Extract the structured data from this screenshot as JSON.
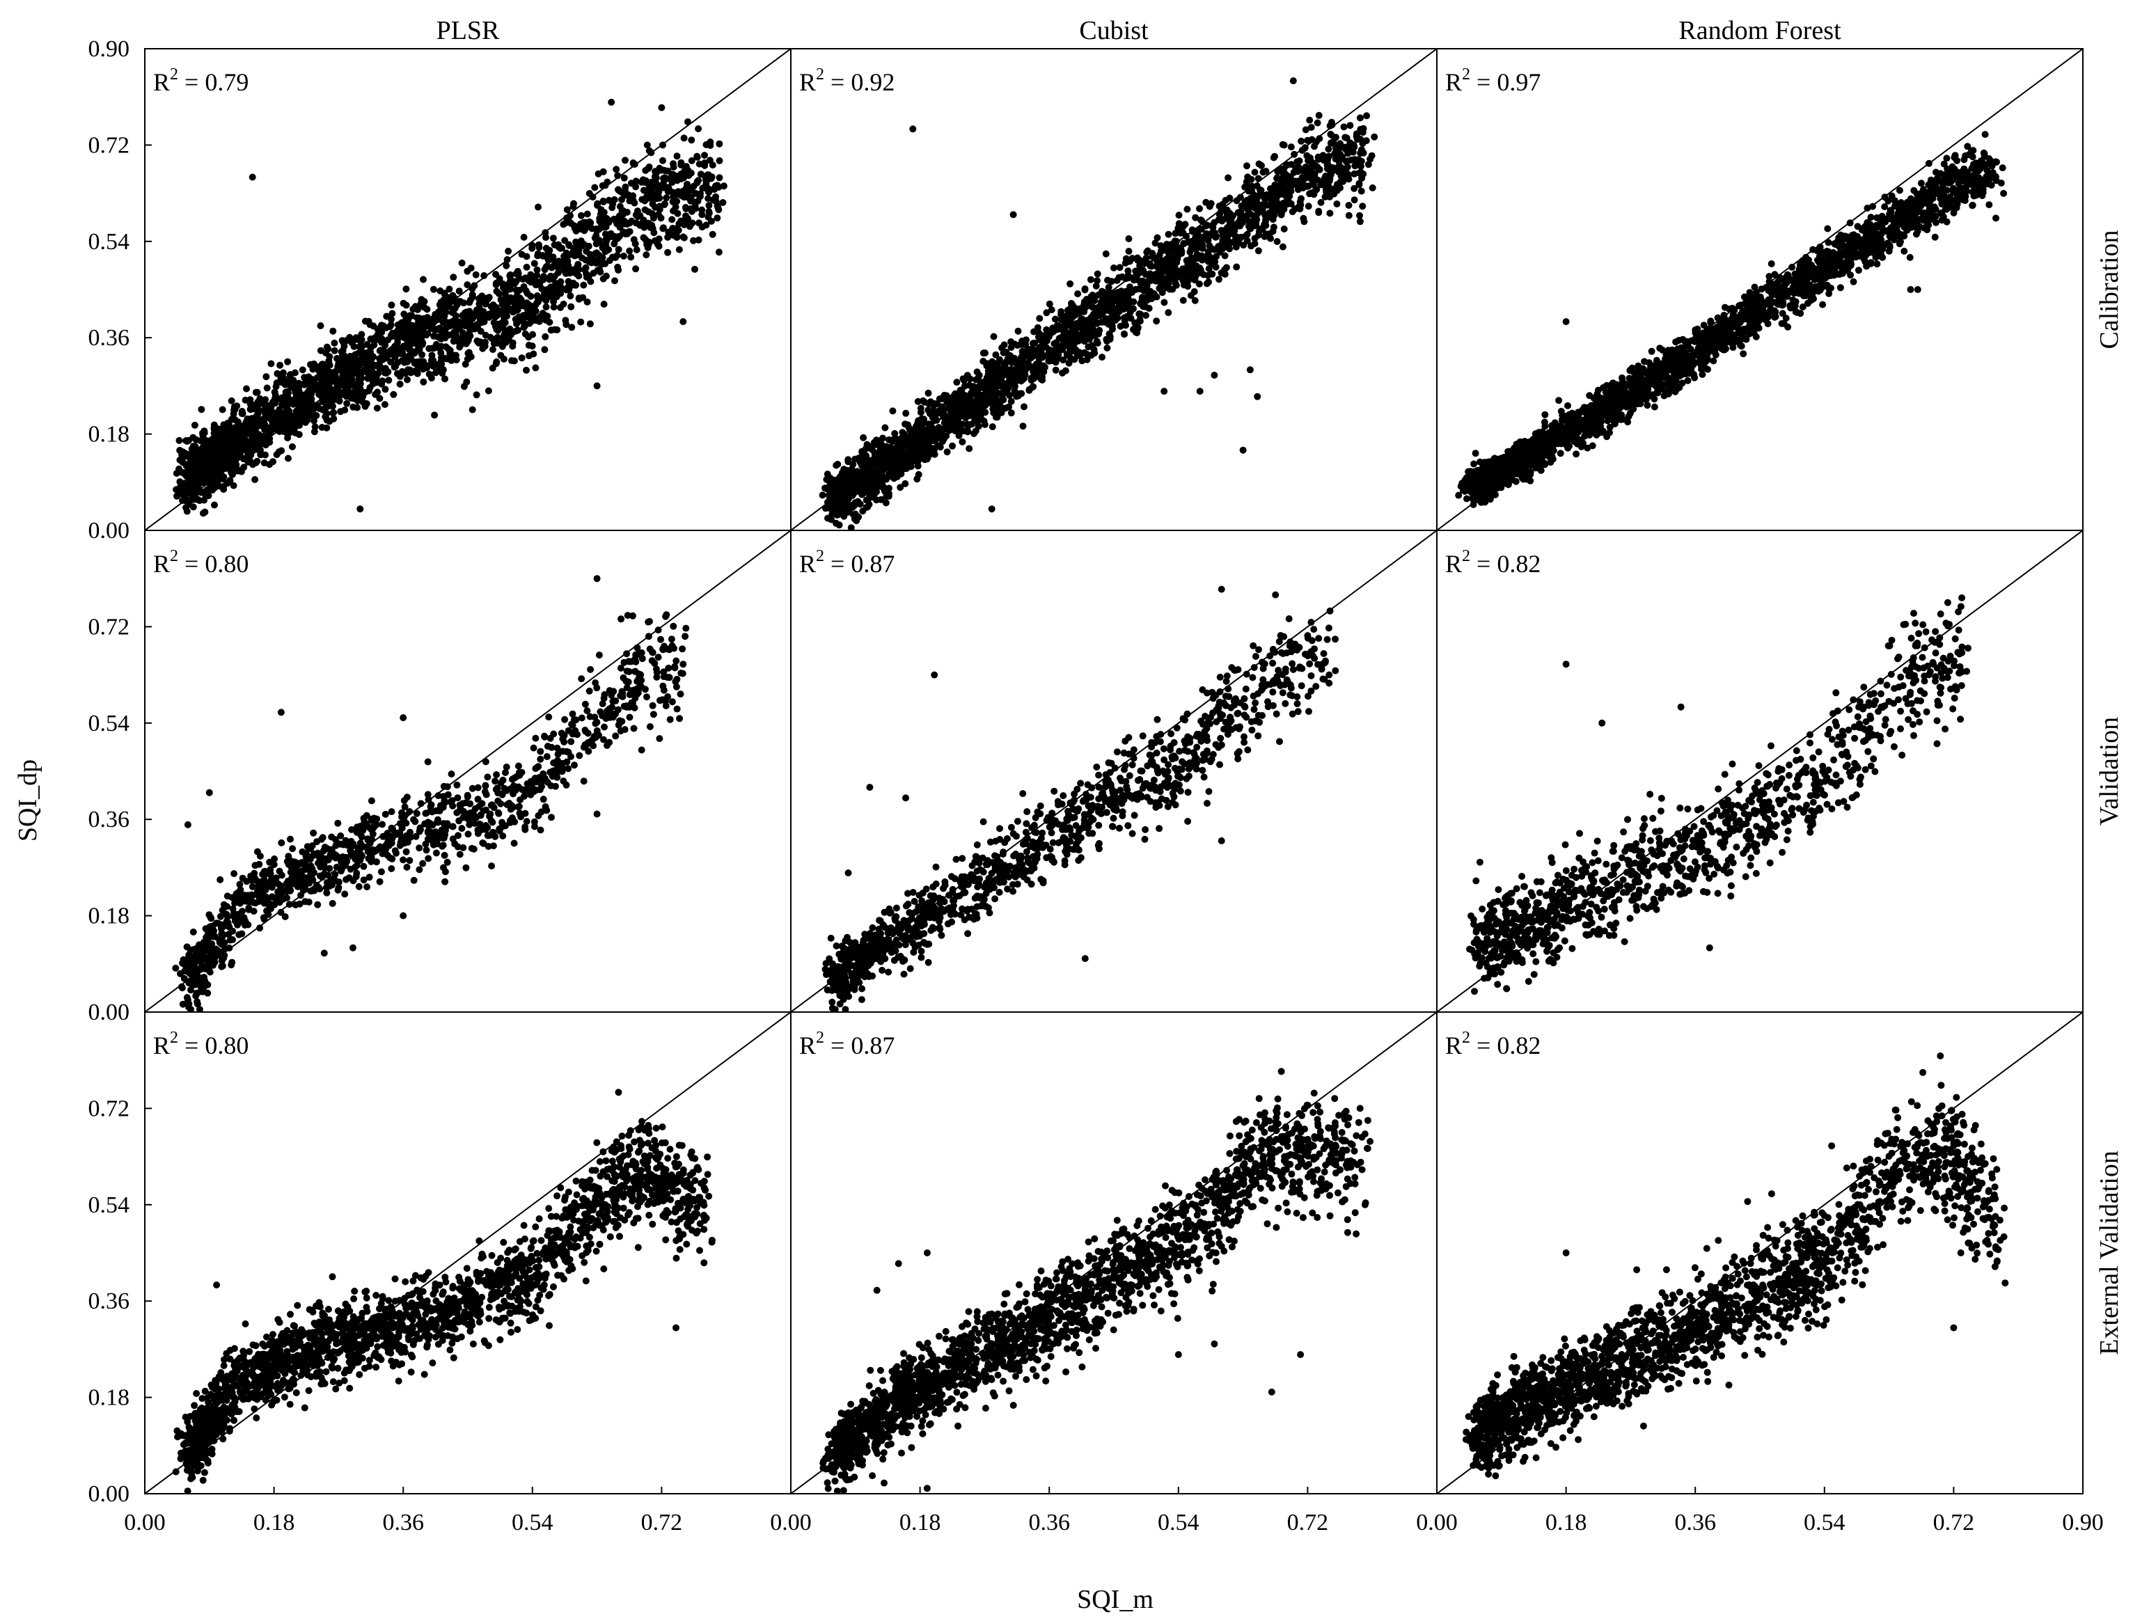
{
  "figure": {
    "x_axis_title": "SQI_m",
    "y_axis_title": "SQI_dp",
    "columns": [
      "PLSR",
      "Cubist",
      "Random Forest"
    ],
    "rows": [
      "Calibration",
      "Validation",
      "External Validation"
    ],
    "tick_values": [
      "0.00",
      "0.18",
      "0.36",
      "0.54",
      "0.72",
      "0.90"
    ]
  },
  "chart_data": [
    {
      "type": "scatter",
      "model": "PLSR",
      "set": "Calibration",
      "r2": "0.79",
      "xlim": [
        0,
        0.9
      ],
      "ylim": [
        0,
        0.9
      ],
      "reference_line": "1:1",
      "cloud": {
        "n": 2300,
        "x_range": [
          0.06,
          0.8
        ],
        "trend": [
          [
            0.06,
            0.1
          ],
          [
            0.2,
            0.23
          ],
          [
            0.36,
            0.35
          ],
          [
            0.54,
            0.43
          ],
          [
            0.63,
            0.55
          ],
          [
            0.72,
            0.62
          ],
          [
            0.8,
            0.64
          ]
        ],
        "spread": 0.045
      },
      "points": [
        [
          0.08,
          0.13
        ],
        [
          0.15,
          0.66
        ],
        [
          0.3,
          0.04
        ],
        [
          0.72,
          0.79
        ],
        [
          0.65,
          0.8
        ],
        [
          0.63,
          0.27
        ],
        [
          0.75,
          0.39
        ],
        [
          0.8,
          0.52
        ],
        [
          0.7,
          0.72
        ]
      ]
    },
    {
      "type": "scatter",
      "model": "Cubist",
      "set": "Calibration",
      "r2": "0.92",
      "xlim": [
        0,
        0.9
      ],
      "ylim": [
        0,
        0.9
      ],
      "reference_line": "1:1",
      "cloud": {
        "n": 2300,
        "x_range": [
          0.06,
          0.8
        ],
        "trend": [
          [
            0.06,
            0.06
          ],
          [
            0.18,
            0.17
          ],
          [
            0.36,
            0.34
          ],
          [
            0.54,
            0.5
          ],
          [
            0.72,
            0.67
          ],
          [
            0.8,
            0.7
          ]
        ],
        "spread": 0.035
      },
      "points": [
        [
          0.17,
          0.75
        ],
        [
          0.31,
          0.59
        ],
        [
          0.64,
          0.3
        ],
        [
          0.63,
          0.15
        ],
        [
          0.65,
          0.25
        ],
        [
          0.52,
          0.26
        ],
        [
          0.57,
          0.26
        ],
        [
          0.59,
          0.29
        ],
        [
          0.28,
          0.04
        ],
        [
          0.7,
          0.84
        ]
      ]
    },
    {
      "type": "scatter",
      "model": "Random Forest",
      "set": "Calibration",
      "r2": "0.97",
      "xlim": [
        0,
        0.9
      ],
      "ylim": [
        0,
        0.9
      ],
      "reference_line": "1:1",
      "cloud": {
        "n": 2300,
        "x_range": [
          0.05,
          0.78
        ],
        "trend": [
          [
            0.05,
            0.08
          ],
          [
            0.18,
            0.18
          ],
          [
            0.36,
            0.33
          ],
          [
            0.54,
            0.49
          ],
          [
            0.72,
            0.64
          ],
          [
            0.78,
            0.68
          ]
        ],
        "spread": 0.022
      },
      "points": [
        [
          0.67,
          0.45
        ],
        [
          0.66,
          0.45
        ],
        [
          0.18,
          0.39
        ],
        [
          0.71,
          0.6
        ]
      ]
    },
    {
      "type": "scatter",
      "model": "PLSR",
      "set": "Validation",
      "r2": "0.80",
      "xlim": [
        0,
        0.9
      ],
      "ylim": [
        0,
        0.9
      ],
      "reference_line": "1:1",
      "cloud": {
        "n": 1100,
        "x_range": [
          0.06,
          0.75
        ],
        "trend": [
          [
            0.06,
            0.06
          ],
          [
            0.15,
            0.22
          ],
          [
            0.3,
            0.3
          ],
          [
            0.45,
            0.36
          ],
          [
            0.54,
            0.42
          ],
          [
            0.63,
            0.56
          ],
          [
            0.72,
            0.65
          ]
        ],
        "spread": 0.04
      },
      "points": [
        [
          0.06,
          0.35
        ],
        [
          0.09,
          0.41
        ],
        [
          0.19,
          0.56
        ],
        [
          0.36,
          0.55
        ],
        [
          0.36,
          0.18
        ],
        [
          0.29,
          0.12
        ],
        [
          0.25,
          0.11
        ],
        [
          0.63,
          0.81
        ],
        [
          0.75,
          0.65
        ],
        [
          0.63,
          0.37
        ]
      ]
    },
    {
      "type": "scatter",
      "model": "Cubist",
      "set": "Validation",
      "r2": "0.87",
      "xlim": [
        0,
        0.9
      ],
      "ylim": [
        0,
        0.9
      ],
      "reference_line": "1:1",
      "cloud": {
        "n": 1100,
        "x_range": [
          0.06,
          0.75
        ],
        "trend": [
          [
            0.06,
            0.06
          ],
          [
            0.18,
            0.17
          ],
          [
            0.36,
            0.33
          ],
          [
            0.54,
            0.46
          ],
          [
            0.66,
            0.62
          ],
          [
            0.72,
            0.66
          ]
        ],
        "spread": 0.04
      },
      "points": [
        [
          0.2,
          0.63
        ],
        [
          0.16,
          0.4
        ],
        [
          0.08,
          0.26
        ],
        [
          0.11,
          0.42
        ],
        [
          0.41,
          0.1
        ],
        [
          0.6,
          0.32
        ],
        [
          0.7,
          0.64
        ],
        [
          0.75,
          0.63
        ],
        [
          0.6,
          0.79
        ],
        [
          0.58,
          0.39
        ]
      ]
    },
    {
      "type": "scatter",
      "model": "Random Forest",
      "set": "Validation",
      "r2": "0.82",
      "xlim": [
        0,
        0.9
      ],
      "ylim": [
        0,
        0.9
      ],
      "reference_line": "1:1",
      "cloud": {
        "n": 1100,
        "x_range": [
          0.06,
          0.74
        ],
        "trend": [
          [
            0.06,
            0.12
          ],
          [
            0.18,
            0.2
          ],
          [
            0.36,
            0.3
          ],
          [
            0.54,
            0.43
          ],
          [
            0.63,
            0.58
          ],
          [
            0.72,
            0.65
          ]
        ],
        "spread": 0.05
      },
      "points": [
        [
          0.18,
          0.65
        ],
        [
          0.06,
          0.28
        ],
        [
          0.38,
          0.12
        ],
        [
          0.34,
          0.57
        ],
        [
          0.23,
          0.54
        ],
        [
          0.74,
          0.68
        ]
      ]
    },
    {
      "type": "scatter",
      "model": "PLSR",
      "set": "External Validation",
      "r2": "0.80",
      "xlim": [
        0,
        0.9
      ],
      "ylim": [
        0,
        0.9
      ],
      "reference_line": "1:1",
      "cloud": {
        "n": 2000,
        "x_range": [
          0.06,
          0.78
        ],
        "trend": [
          [
            0.06,
            0.07
          ],
          [
            0.12,
            0.2
          ],
          [
            0.25,
            0.28
          ],
          [
            0.4,
            0.33
          ],
          [
            0.54,
            0.4
          ],
          [
            0.63,
            0.55
          ],
          [
            0.7,
            0.6
          ],
          [
            0.75,
            0.55
          ]
        ],
        "spread": 0.04
      },
      "points": [
        [
          0.1,
          0.39
        ],
        [
          0.74,
          0.31
        ],
        [
          0.79,
          0.47
        ],
        [
          0.74,
          0.58
        ],
        [
          0.66,
          0.75
        ],
        [
          0.71,
          0.66
        ]
      ]
    },
    {
      "type": "scatter",
      "model": "Cubist",
      "set": "External Validation",
      "r2": "0.87",
      "xlim": [
        0,
        0.9
      ],
      "ylim": [
        0,
        0.9
      ],
      "reference_line": "1:1",
      "cloud": {
        "n": 2000,
        "x_range": [
          0.06,
          0.8
        ],
        "trend": [
          [
            0.06,
            0.07
          ],
          [
            0.18,
            0.2
          ],
          [
            0.36,
            0.33
          ],
          [
            0.54,
            0.47
          ],
          [
            0.66,
            0.63
          ],
          [
            0.76,
            0.63
          ]
        ],
        "spread": 0.045
      },
      "points": [
        [
          0.12,
          0.38
        ],
        [
          0.19,
          0.45
        ],
        [
          0.15,
          0.43
        ],
        [
          0.67,
          0.19
        ],
        [
          0.71,
          0.26
        ],
        [
          0.8,
          0.54
        ],
        [
          0.19,
          0.01
        ],
        [
          0.13,
          0.02
        ],
        [
          0.54,
          0.26
        ],
        [
          0.59,
          0.28
        ]
      ]
    },
    {
      "type": "scatter",
      "model": "Random Forest",
      "set": "External Validation",
      "r2": "0.82",
      "xlim": [
        0,
        0.9
      ],
      "ylim": [
        0,
        0.9
      ],
      "reference_line": "1:1",
      "cloud": {
        "n": 2000,
        "x_range": [
          0.06,
          0.78
        ],
        "trend": [
          [
            0.06,
            0.11
          ],
          [
            0.18,
            0.2
          ],
          [
            0.36,
            0.31
          ],
          [
            0.54,
            0.44
          ],
          [
            0.63,
            0.6
          ],
          [
            0.72,
            0.63
          ],
          [
            0.78,
            0.5
          ]
        ],
        "spread": 0.05
      },
      "points": [
        [
          0.18,
          0.45
        ],
        [
          0.72,
          0.31
        ],
        [
          0.79,
          0.48
        ],
        [
          0.73,
          0.45
        ],
        [
          0.55,
          0.65
        ],
        [
          0.74,
          0.63
        ]
      ]
    }
  ]
}
